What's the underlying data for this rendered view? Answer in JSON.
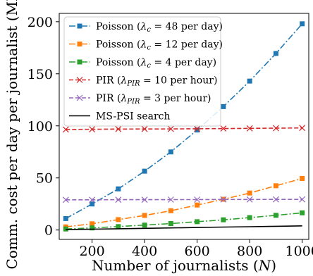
{
  "chart_data": {
    "type": "line",
    "xlabel": "Number of journalists (N)",
    "ylabel": "Comm. cost per day per journalist (MB)",
    "xlim": [
      75,
      1025
    ],
    "ylim": [
      -9,
      208
    ],
    "x_ticks": [
      200,
      400,
      600,
      800,
      1000
    ],
    "y_ticks": [
      0,
      50,
      100,
      150,
      200
    ],
    "grid": false,
    "legend_position": "top-left",
    "x": [
      100,
      200,
      300,
      400,
      500,
      600,
      700,
      800,
      900,
      1000
    ],
    "series": [
      {
        "name": "Poisson (λc = 48 per day)",
        "color": "#1f77b4",
        "marker": "square",
        "line": "dashdot",
        "values": [
          11,
          25,
          39.5,
          56.5,
          75,
          96,
          118.5,
          143,
          169.5,
          198
        ]
      },
      {
        "name": "Poisson (λc = 12 per day)",
        "color": "#ff7f0e",
        "marker": "square",
        "line": "dashdot",
        "values": [
          3,
          6,
          10,
          14,
          18.5,
          24,
          29.5,
          35.5,
          42.5,
          49.5
        ]
      },
      {
        "name": "Poisson (λc = 4 per day)",
        "color": "#2ca02c",
        "marker": "square",
        "line": "dashdot",
        "values": [
          1,
          2,
          3.3,
          4.7,
          6.2,
          8,
          9.8,
          11.9,
          14.1,
          16.5
        ]
      },
      {
        "name": "PIR (λPIR = 10 per hour)",
        "color": "#d62728",
        "marker": "x",
        "line": "dashed",
        "values": [
          96.5,
          96.7,
          96.9,
          97,
          97.1,
          97.2,
          97.4,
          97.6,
          97.8,
          98
        ]
      },
      {
        "name": "PIR (λPIR = 3 per hour)",
        "color": "#9467bd",
        "marker": "x",
        "line": "dashed",
        "values": [
          29,
          29,
          29.1,
          29.1,
          29.2,
          29.2,
          29.3,
          29.3,
          29.4,
          29.4
        ]
      },
      {
        "name": "MS-PSI search",
        "color": "#000000",
        "marker": "none",
        "line": "solid",
        "values": [
          0.4,
          0.8,
          1.2,
          1.6,
          2.0,
          2.4,
          2.8,
          3.2,
          3.6,
          4.0
        ]
      }
    ]
  },
  "legend": {
    "entries": [
      {
        "pre": "Poisson (",
        "sym": "λ",
        "sub": "c",
        "post": " = 48 per day)"
      },
      {
        "pre": "Poisson (",
        "sym": "λ",
        "sub": "c",
        "post": " = 12 per day)"
      },
      {
        "pre": "Poisson (",
        "sym": "λ",
        "sub": "c",
        "post": " = 4 per day)"
      },
      {
        "pre": "PIR (",
        "sym": "λ",
        "sub": "PIR",
        "post": " = 10 per hour)"
      },
      {
        "pre": "PIR (",
        "sym": "λ",
        "sub": "PIR",
        "post": " = 3 per hour)"
      },
      {
        "pre": "MS-PSI search",
        "sym": "",
        "sub": "",
        "post": ""
      }
    ]
  },
  "xlabel_parts": {
    "pre": "Number of journalists (",
    "var": "N",
    "post": ")"
  }
}
